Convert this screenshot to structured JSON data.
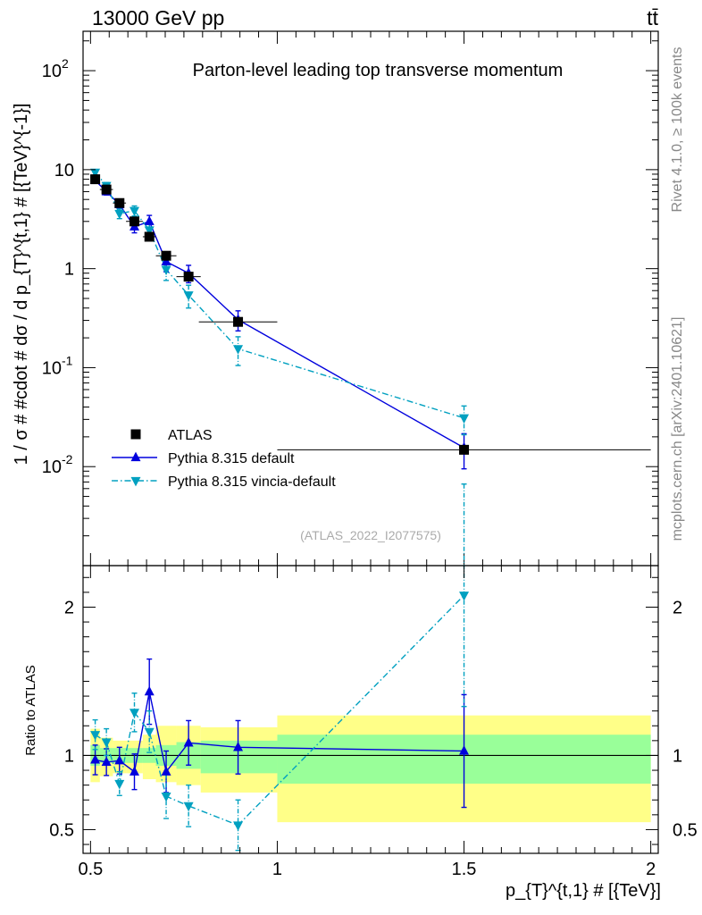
{
  "header": {
    "energy_label": "13000 GeV pp",
    "process_label": "tt̄"
  },
  "side_labels": {
    "rivet": "Rivet 4.1.0, ≥ 100k events",
    "mcplots": "mcplots.cern.ch [arXiv:2401.10621]"
  },
  "watermark": "(ATLAS_2022_I2077575)",
  "chart_data": [
    {
      "type": "scatter",
      "title": "Parton-level leading top transverse momentum",
      "xlabel": "p_{T}^{t,1} # [{TeV}]",
      "ylabel": "1 / σ # #cdot # dσ / d p_{T}^{t,1} # [{TeV}^{-1}]",
      "yscale": "log",
      "xlim": [
        0.48,
        2.02
      ],
      "ylim": [
        0.001,
        250
      ],
      "y_ticks": [
        {
          "value": 0.01,
          "label_base": "10",
          "label_exp": "-2"
        },
        {
          "value": 0.1,
          "label_base": "10",
          "label_exp": "-1"
        },
        {
          "value": 1,
          "label_base": "1",
          "label_exp": ""
        },
        {
          "value": 10,
          "label_base": "10",
          "label_exp": ""
        },
        {
          "value": 100,
          "label_base": "10",
          "label_exp": "2"
        }
      ],
      "legend_position": "bottom-left",
      "series": [
        {
          "name": "ATLAS",
          "color": "#000000",
          "marker": "square",
          "x": [
            0.5125,
            0.5425,
            0.5775,
            0.6175,
            0.6575,
            0.7025,
            0.7625,
            0.895,
            1.5
          ],
          "y": [
            8.0,
            6.3,
            4.6,
            3.0,
            2.1,
            1.35,
            0.83,
            0.29,
            0.0148
          ],
          "xerr": [
            0.0125,
            0.0175,
            0.0175,
            0.0225,
            0.0175,
            0.0275,
            0.0325,
            0.105,
            0.5
          ]
        },
        {
          "name": "Pythia 8.315 default",
          "color": "#0000dd",
          "marker": "triangle-up",
          "x": [
            0.5125,
            0.5425,
            0.5775,
            0.6175,
            0.6575,
            0.7025,
            0.7625,
            0.895,
            1.5
          ],
          "y": [
            7.8,
            6.0,
            4.45,
            2.65,
            3.0,
            1.18,
            0.9,
            0.305,
            0.0155
          ],
          "yerr": [
            0.5,
            0.45,
            0.4,
            0.35,
            0.45,
            0.25,
            0.18,
            0.07,
            0.006
          ]
        },
        {
          "name": "Pythia 8.315 vincia-default",
          "color": "#00a0c0",
          "marker": "triangle-down",
          "x": [
            0.5125,
            0.5425,
            0.5775,
            0.6175,
            0.6575,
            0.7025,
            0.7625,
            0.895,
            1.5
          ],
          "y": [
            9.4,
            6.9,
            3.6,
            3.85,
            2.45,
            0.98,
            0.54,
            0.155,
            0.031
          ],
          "yerr": [
            0.6,
            0.5,
            0.4,
            0.45,
            0.35,
            0.22,
            0.14,
            0.05,
            0.01
          ]
        }
      ]
    },
    {
      "type": "scatter",
      "title": "",
      "xlabel": "p_{T}^{t,1} # [{TeV}]",
      "ylabel": "Ratio to ATLAS",
      "xlim": [
        0.48,
        2.02
      ],
      "ylim": [
        0.34,
        2.28
      ],
      "x_tick_labels": [
        {
          "value": 0.5,
          "label": "0.5"
        },
        {
          "value": 1,
          "label": "1"
        },
        {
          "value": 1.5,
          "label": "1.5"
        },
        {
          "value": 2,
          "label": "2"
        }
      ],
      "y_tick_labels": [
        {
          "value": 0.5,
          "label": "0.5"
        },
        {
          "value": 1,
          "label": "1"
        },
        {
          "value": 2,
          "label": "2"
        }
      ],
      "bands": {
        "bin_edges": [
          0.5,
          0.525,
          0.56,
          0.595,
          0.64,
          0.675,
          0.73,
          0.795,
          1.0,
          2.0
        ],
        "stat_color": "#99ff99",
        "total_color": "#ffff88",
        "stat_lo": [
          0.93,
          0.95,
          0.95,
          0.95,
          0.95,
          0.93,
          0.91,
          0.88,
          0.81
        ],
        "stat_hi": [
          1.07,
          1.05,
          1.05,
          1.05,
          1.05,
          1.07,
          1.09,
          1.1,
          1.14
        ],
        "total_lo": [
          0.82,
          0.86,
          0.88,
          0.88,
          0.84,
          0.82,
          0.8,
          0.75,
          0.55
        ],
        "total_hi": [
          1.18,
          1.12,
          1.1,
          1.1,
          1.14,
          1.2,
          1.2,
          1.19,
          1.27
        ]
      },
      "series": [
        {
          "name": "Pythia 8.315 default",
          "color": "#0000dd",
          "marker": "triangle-up",
          "x": [
            0.5125,
            0.5425,
            0.5775,
            0.6175,
            0.6575,
            0.7025,
            0.7625,
            0.895,
            1.5
          ],
          "y": [
            0.97,
            0.955,
            0.965,
            0.89,
            1.43,
            0.89,
            1.085,
            1.055,
            1.03
          ],
          "yerr_lo": [
            0.1,
            0.09,
            0.09,
            0.12,
            0.22,
            0.14,
            0.15,
            0.18,
            0.38
          ],
          "yerr_hi": [
            0.1,
            0.09,
            0.09,
            0.12,
            0.22,
            0.14,
            0.15,
            0.18,
            0.38
          ]
        },
        {
          "name": "Pythia 8.315 vincia-default",
          "color": "#00a0c0",
          "marker": "triangle-down",
          "x": [
            0.5125,
            0.5425,
            0.5775,
            0.6175,
            0.6575,
            0.7025,
            0.7625,
            0.895,
            1.5
          ],
          "y": [
            1.14,
            1.09,
            0.81,
            1.29,
            1.16,
            0.725,
            0.66,
            0.53,
            2.08
          ],
          "yerr_lo": [
            0.1,
            0.09,
            0.08,
            0.13,
            0.14,
            0.15,
            0.14,
            0.17,
            0.75
          ],
          "yerr_hi": [
            0.1,
            0.09,
            0.08,
            0.13,
            0.14,
            0.15,
            0.14,
            0.17,
            0.75
          ]
        }
      ]
    }
  ]
}
